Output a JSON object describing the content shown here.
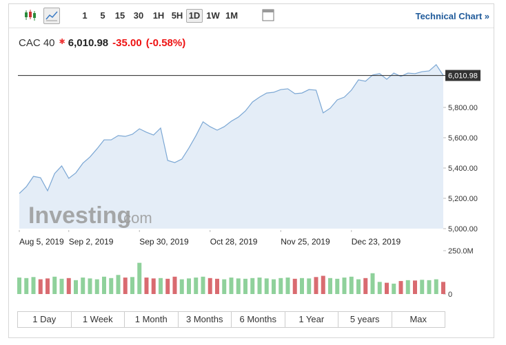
{
  "toolbar": {
    "intervals": [
      "1",
      "5",
      "15",
      "30",
      "1H",
      "5H",
      "1D",
      "1W",
      "1M"
    ],
    "selected_index": 6,
    "technical_chart": "Technical Chart »"
  },
  "quote": {
    "name": "CAC 40",
    "last": "6,010.98",
    "change": "-35.00",
    "change_percent": "(-0.58%)"
  },
  "watermark": {
    "brand": "Investing",
    "suffix": ".com"
  },
  "chart_data": [
    {
      "type": "area",
      "color": "#7ba7d4",
      "values": [
        5232,
        5277,
        5345,
        5336,
        5250,
        5364,
        5414,
        5332,
        5368,
        5432,
        5473,
        5527,
        5586,
        5586,
        5614,
        5609,
        5623,
        5659,
        5636,
        5618,
        5664,
        5450,
        5436,
        5459,
        5532,
        5614,
        5705,
        5673,
        5650,
        5673,
        5709,
        5736,
        5777,
        5836,
        5868,
        5895,
        5900,
        5918,
        5923,
        5891,
        5895,
        5918,
        5914,
        5764,
        5795,
        5850,
        5868,
        5914,
        5982,
        5973,
        6014,
        6023,
        5986,
        6027,
        6005,
        6027,
        6023,
        6036,
        6041,
        6082,
        6011
      ],
      "xticks": [
        {
          "value": 0,
          "label": "Aug 5, 2019"
        },
        {
          "value": 7,
          "label": "Sep 2, 2019"
        },
        {
          "value": 17,
          "label": "Sep 30, 2019"
        },
        {
          "value": 27,
          "label": "Oct 28, 2019"
        },
        {
          "value": 37,
          "label": "Nov 25, 2019"
        },
        {
          "value": 47,
          "label": "Dec 23, 2019"
        }
      ],
      "ylim": [
        5000,
        6100
      ],
      "yticks": [
        {
          "value": 5000,
          "label": "5,000.00"
        },
        {
          "value": 5200,
          "label": "5,200.00"
        },
        {
          "value": 5400,
          "label": "5,400.00"
        },
        {
          "value": 5600,
          "label": "5,600.00"
        },
        {
          "value": 5800,
          "label": "5,800.00"
        }
      ],
      "reference_line": {
        "value": 6010.98,
        "label": "6,010.98"
      }
    },
    {
      "type": "bar",
      "up_color": "#8fd19b",
      "down_color": "#d96b70",
      "values": [
        95,
        92,
        98,
        85,
        90,
        100,
        88,
        92,
        80,
        95,
        90,
        85,
        100,
        92,
        110,
        95,
        98,
        180,
        95,
        90,
        92,
        88,
        100,
        85,
        90,
        95,
        100,
        92,
        88,
        85,
        95,
        90,
        88,
        92,
        95,
        90,
        85,
        92,
        95,
        88,
        92,
        90,
        98,
        105,
        92,
        88,
        95,
        100,
        85,
        92,
        120,
        70,
        65,
        60,
        75,
        80,
        78,
        82,
        80,
        85,
        70
      ],
      "ylim": [
        0,
        250
      ],
      "yticks": [
        {
          "value": 0,
          "label": "0"
        },
        {
          "value": 250,
          "label": "250.0M"
        }
      ]
    }
  ],
  "periods": [
    "1 Day",
    "1 Week",
    "1 Month",
    "3 Months",
    "6 Months",
    "1 Year",
    "5 years",
    "Max"
  ]
}
